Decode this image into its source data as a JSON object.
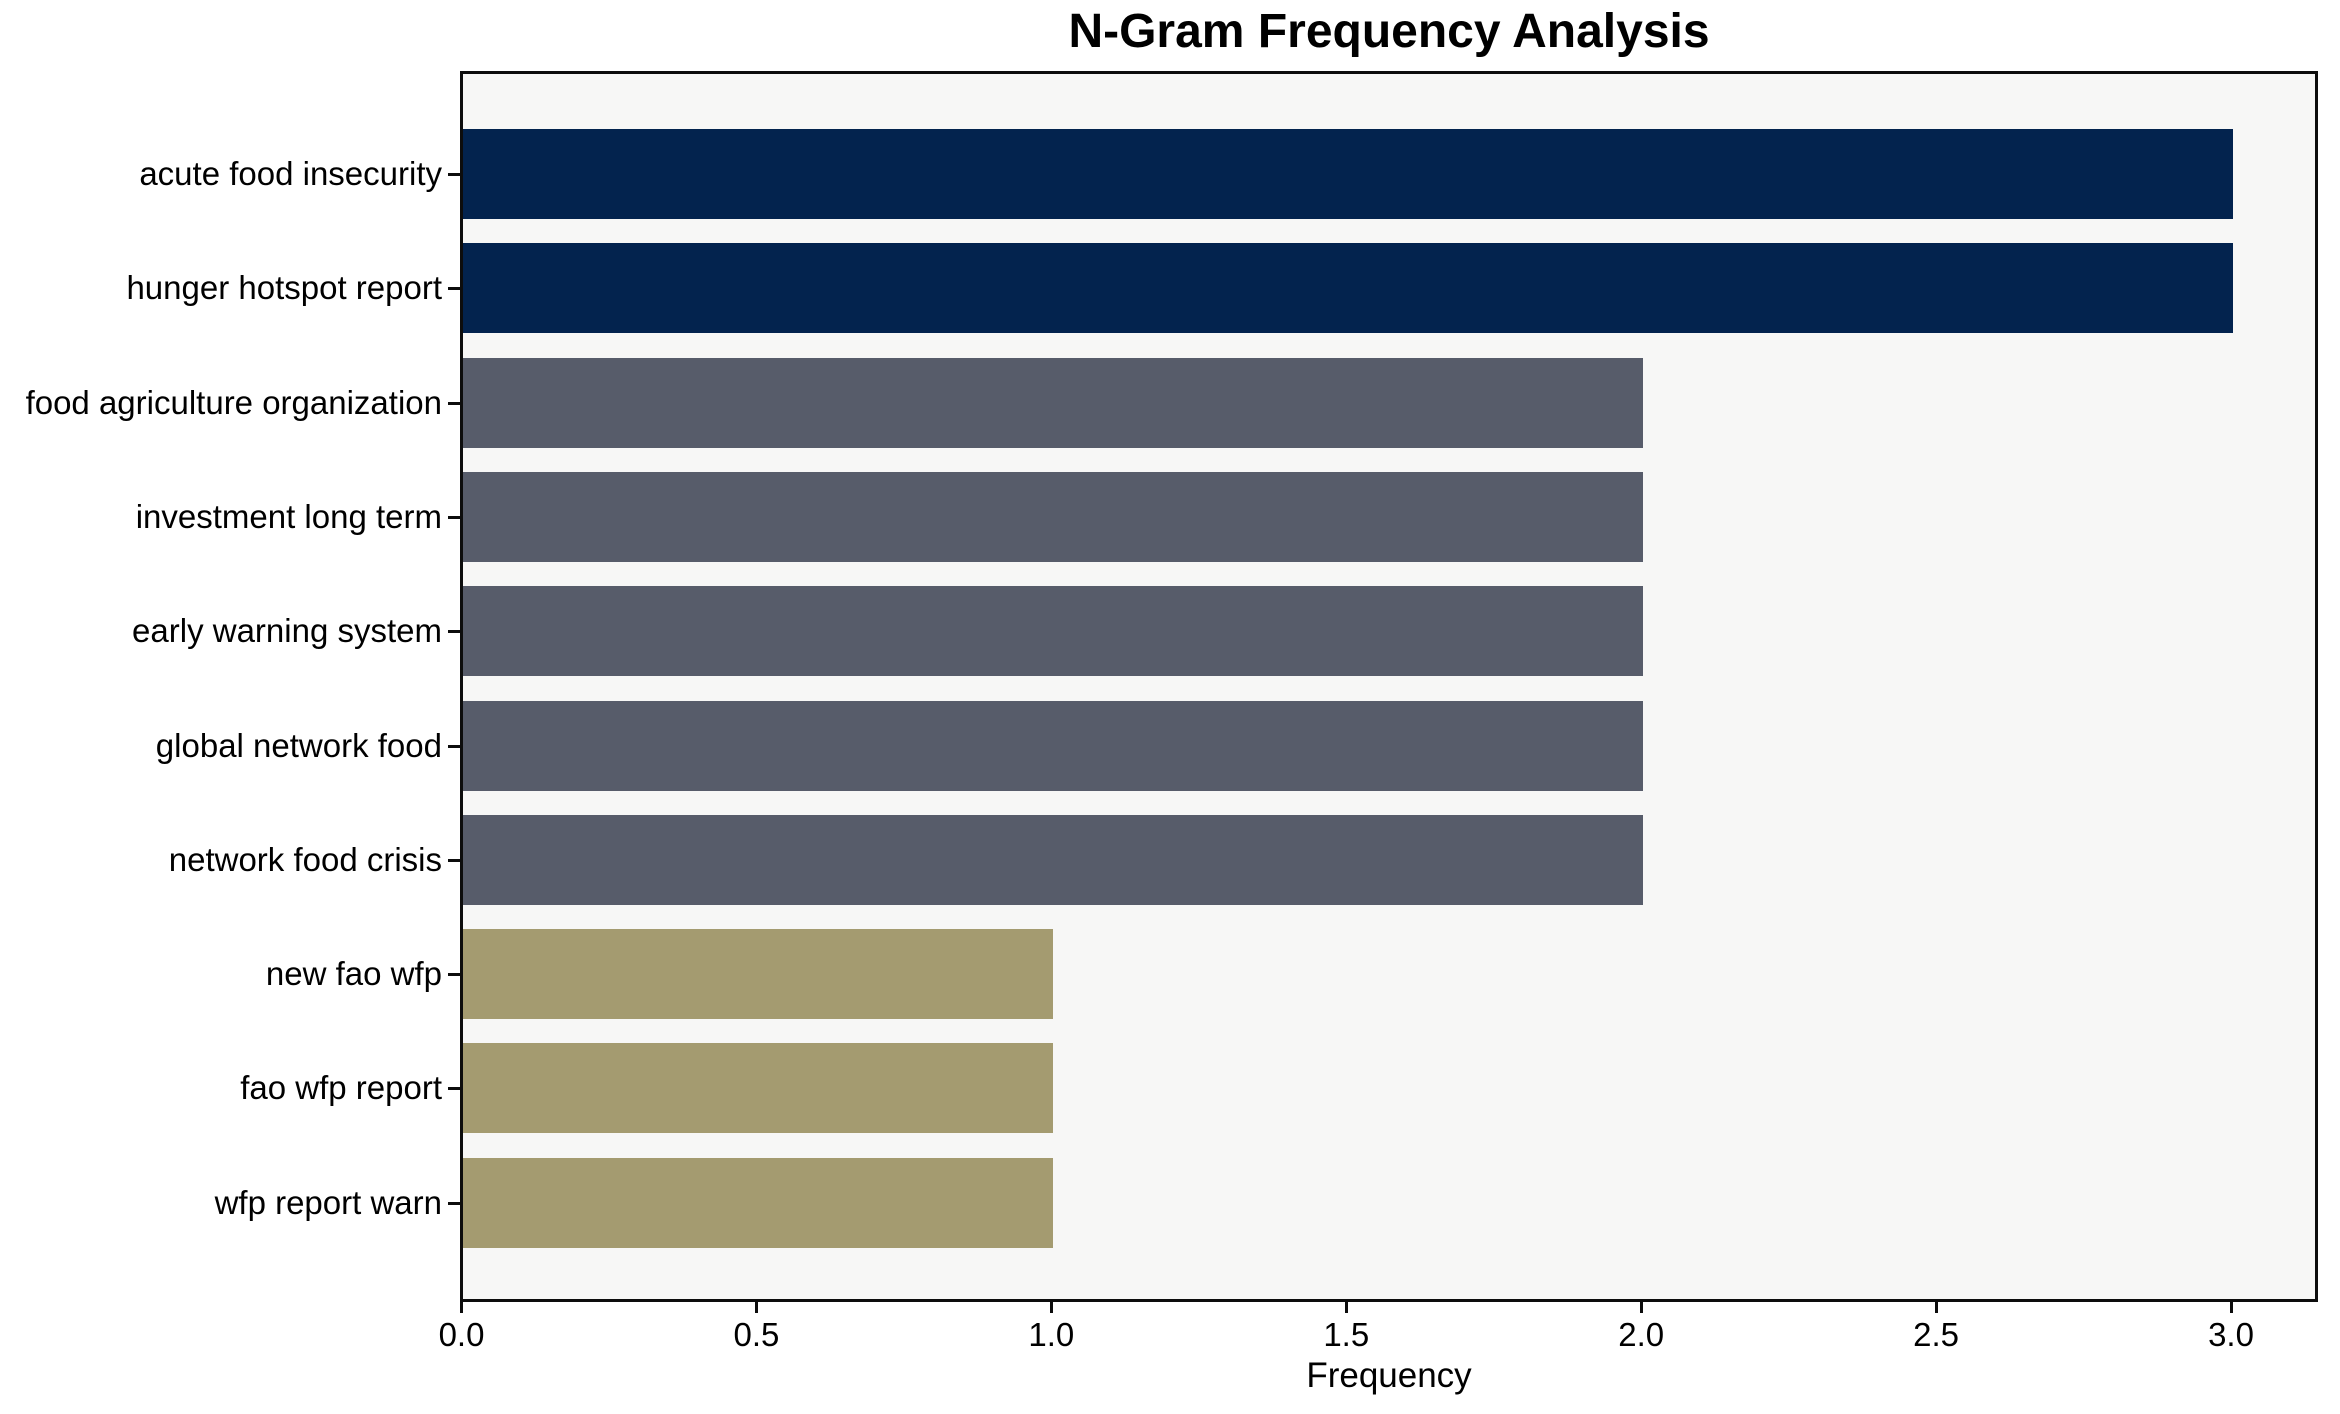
{
  "chart_data": {
    "type": "bar",
    "orientation": "horizontal",
    "title": "N-Gram Frequency Analysis",
    "xlabel": "Frequency",
    "ylabel": "",
    "categories": [
      "acute food insecurity",
      "hunger hotspot report",
      "food agriculture organization",
      "investment long term",
      "early warning system",
      "global network food",
      "network food crisis",
      "new fao wfp",
      "fao wfp report",
      "wfp report warn"
    ],
    "values": [
      3,
      3,
      2,
      2,
      2,
      2,
      2,
      1,
      1,
      1
    ],
    "bar_colors": [
      "#03234e",
      "#03234e",
      "#575c6a",
      "#575c6a",
      "#575c6a",
      "#575c6a",
      "#575c6a",
      "#a49b70",
      "#a49b70",
      "#a49b70"
    ],
    "x_ticks": [
      "0.0",
      "0.5",
      "1.0",
      "1.5",
      "2.0",
      "2.5",
      "3.0"
    ],
    "x_tick_values": [
      0,
      0.5,
      1,
      1.5,
      2,
      2.5,
      3
    ],
    "xlim": [
      0,
      3.15
    ],
    "grid": false,
    "legend": null,
    "colors": {
      "plot_background": "#f7f7f6",
      "figure_background": "#ffffff",
      "spine": "#0d0d0d",
      "text": "#000000"
    }
  }
}
